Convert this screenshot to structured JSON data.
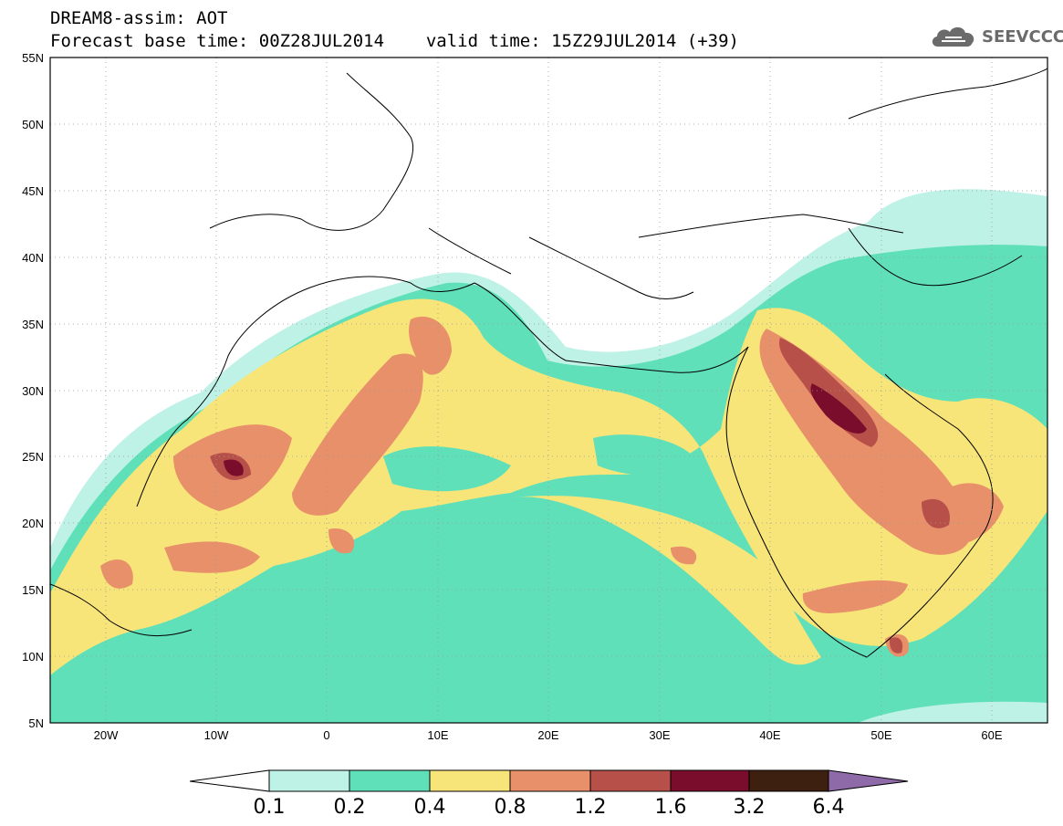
{
  "header": {
    "title_line1": "DREAM8-assim: AOT",
    "forecast_base": "Forecast base time: 00Z28JUL2014",
    "valid_time": "valid time: 15Z29JUL2014 (+39)"
  },
  "logo": {
    "text": "SEEVCCC",
    "icon": "cloud-icon"
  },
  "map": {
    "variable": "AOT",
    "lat_labels": [
      "55N",
      "50N",
      "45N",
      "40N",
      "35N",
      "30N",
      "25N",
      "20N",
      "15N",
      "10N",
      "5N"
    ],
    "lon_labels": [
      "20W",
      "10W",
      "0",
      "10E",
      "20E",
      "30E",
      "40E",
      "50E",
      "60E"
    ],
    "extent": {
      "lon_min": -25,
      "lon_max": 65,
      "lat_min": 5,
      "lat_max": 55
    },
    "gridlines": "dotted"
  },
  "colorbar": {
    "levels": [
      "0.1",
      "0.2",
      "0.4",
      "0.8",
      "1.2",
      "1.6",
      "3.2",
      "6.4"
    ],
    "colors": [
      "#ffffff",
      "#bff2e6",
      "#5fe0b8",
      "#f7e57a",
      "#e8906a",
      "#b8504a",
      "#7a0c2c",
      "#3d2010",
      "#8f6aa8"
    ]
  }
}
